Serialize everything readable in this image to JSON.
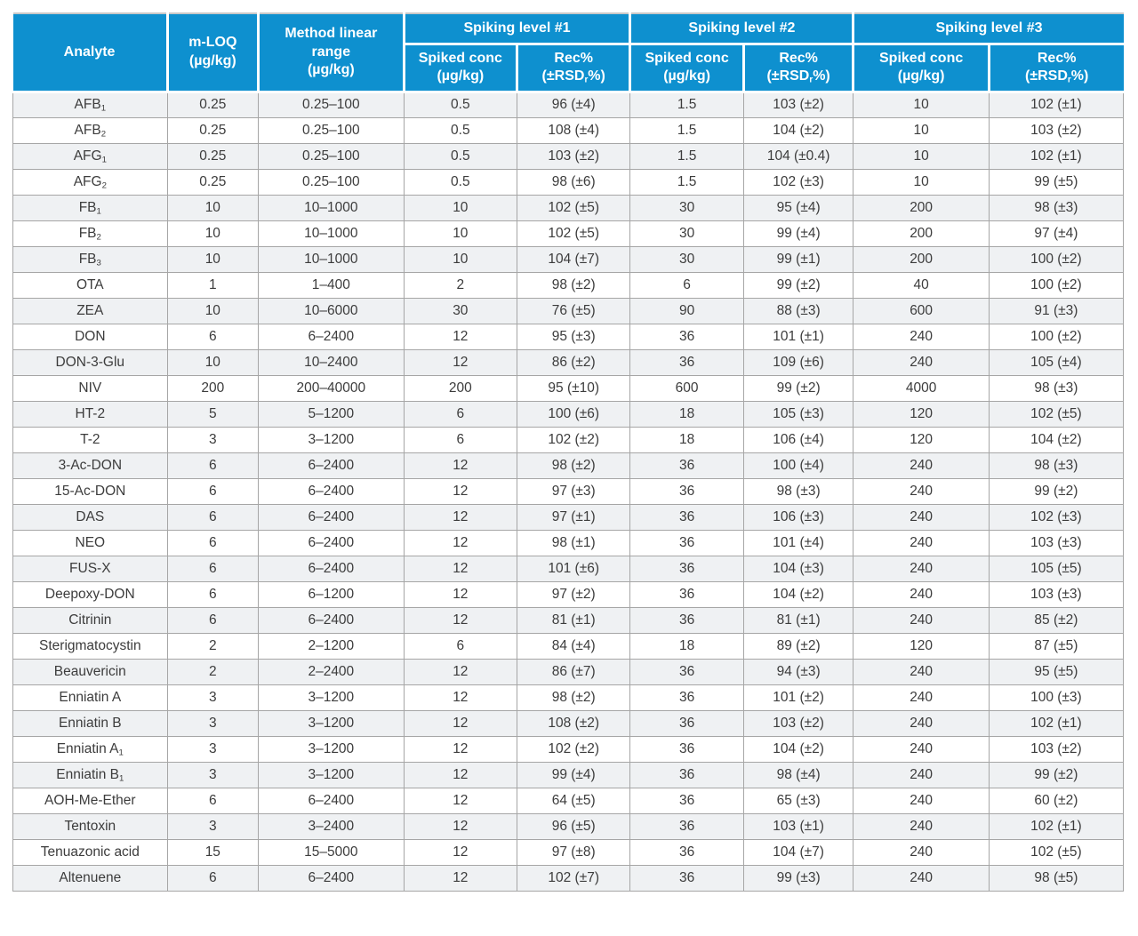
{
  "colors": {
    "header_bg": "#0e90cf",
    "header_text": "#ffffff",
    "body_text": "#3c3c3c",
    "row_stripe": "#eff1f3",
    "grid_border": "#a6a6a6"
  },
  "table": {
    "header": {
      "analyte": "Analyte",
      "mloq": "m-LOQ\n(µg/kg)",
      "range": "Method linear\nrange\n(µg/kg)",
      "groups": [
        "Spiking level #1",
        "Spiking level #2",
        "Spiking level #3"
      ],
      "spiked": "Spiked conc\n(µg/kg)",
      "rec": "Rec%\n(±RSD~r~%)"
    },
    "rows": [
      [
        "AFB~1~",
        "0.25",
        "0.25–100",
        "0.5",
        "96 (±4)",
        "1.5",
        "103 (±2)",
        "10",
        "102 (±1)"
      ],
      [
        "AFB~2~",
        "0.25",
        "0.25–100",
        "0.5",
        "108 (±4)",
        "1.5",
        "104 (±2)",
        "10",
        "103 (±2)"
      ],
      [
        "AFG~1~",
        "0.25",
        "0.25–100",
        "0.5",
        "103 (±2)",
        "1.5",
        "104 (±0.4)",
        "10",
        "102 (±1)"
      ],
      [
        "AFG~2~",
        "0.25",
        "0.25–100",
        "0.5",
        "98 (±6)",
        "1.5",
        "102 (±3)",
        "10",
        "99 (±5)"
      ],
      [
        "FB~1~",
        "10",
        "10–1000",
        "10",
        "102 (±5)",
        "30",
        "95 (±4)",
        "200",
        "98 (±3)"
      ],
      [
        "FB~2~",
        "10",
        "10–1000",
        "10",
        "102 (±5)",
        "30",
        "99 (±4)",
        "200",
        "97 (±4)"
      ],
      [
        "FB~3~",
        "10",
        "10–1000",
        "10",
        "104 (±7)",
        "30",
        "99 (±1)",
        "200",
        "100 (±2)"
      ],
      [
        "OTA",
        "1",
        "1–400",
        "2",
        "98 (±2)",
        "6",
        "99 (±2)",
        "40",
        "100 (±2)"
      ],
      [
        "ZEA",
        "10",
        "10–6000",
        "30",
        "76 (±5)",
        "90",
        "88 (±3)",
        "600",
        "91 (±3)"
      ],
      [
        "DON",
        "6",
        "6–2400",
        "12",
        "95 (±3)",
        "36",
        "101 (±1)",
        "240",
        "100 (±2)"
      ],
      [
        "DON-3-Glu",
        "10",
        "10–2400",
        "12",
        "86 (±2)",
        "36",
        "109 (±6)",
        "240",
        "105 (±4)"
      ],
      [
        "NIV",
        "200",
        "200–40000",
        "200",
        "95 (±10)",
        "600",
        "99 (±2)",
        "4000",
        "98 (±3)"
      ],
      [
        "HT-2",
        "5",
        "5–1200",
        "6",
        "100 (±6)",
        "18",
        "105 (±3)",
        "120",
        "102 (±5)"
      ],
      [
        "T-2",
        "3",
        "3–1200",
        "6",
        "102 (±2)",
        "18",
        "106 (±4)",
        "120",
        "104 (±2)"
      ],
      [
        "3-Ac-DON",
        "6",
        "6–2400",
        "12",
        "98 (±2)",
        "36",
        "100 (±4)",
        "240",
        "98 (±3)"
      ],
      [
        "15-Ac-DON",
        "6",
        "6–2400",
        "12",
        "97 (±3)",
        "36",
        "98 (±3)",
        "240",
        "99 (±2)"
      ],
      [
        "DAS",
        "6",
        "6–2400",
        "12",
        "97 (±1)",
        "36",
        "106 (±3)",
        "240",
        "102 (±3)"
      ],
      [
        "NEO",
        "6",
        "6–2400",
        "12",
        "98 (±1)",
        "36",
        "101 (±4)",
        "240",
        "103 (±3)"
      ],
      [
        "FUS-X",
        "6",
        "6–2400",
        "12",
        "101 (±6)",
        "36",
        "104 (±3)",
        "240",
        "105 (±5)"
      ],
      [
        "Deepoxy-DON",
        "6",
        "6–1200",
        "12",
        "97 (±2)",
        "36",
        "104 (±2)",
        "240",
        "103 (±3)"
      ],
      [
        "Citrinin",
        "6",
        "6–2400",
        "12",
        "81 (±1)",
        "36",
        "81 (±1)",
        "240",
        "85 (±2)"
      ],
      [
        "Sterigmatocystin",
        "2",
        "2–1200",
        "6",
        "84 (±4)",
        "18",
        "89 (±2)",
        "120",
        "87 (±5)"
      ],
      [
        "Beauvericin",
        "2",
        "2–2400",
        "12",
        "86 (±7)",
        "36",
        "94 (±3)",
        "240",
        "95 (±5)"
      ],
      [
        "Enniatin A",
        "3",
        "3–1200",
        "12",
        "98 (±2)",
        "36",
        "101 (±2)",
        "240",
        "100 (±3)"
      ],
      [
        "Enniatin B",
        "3",
        "3–1200",
        "12",
        "108 (±2)",
        "36",
        "103 (±2)",
        "240",
        "102 (±1)"
      ],
      [
        "Enniatin A~1~",
        "3",
        "3–1200",
        "12",
        "102 (±2)",
        "36",
        "104 (±2)",
        "240",
        "103 (±2)"
      ],
      [
        "Enniatin B~1~",
        "3",
        "3–1200",
        "12",
        "99 (±4)",
        "36",
        "98 (±4)",
        "240",
        "99 (±2)"
      ],
      [
        "AOH-Me-Ether",
        "6",
        "6–2400",
        "12",
        "64 (±5)",
        "36",
        "65 (±3)",
        "240",
        "60 (±2)"
      ],
      [
        "Tentoxin",
        "3",
        "3–2400",
        "12",
        "96 (±5)",
        "36",
        "103 (±1)",
        "240",
        "102 (±1)"
      ],
      [
        "Tenuazonic acid",
        "15",
        "15–5000",
        "12",
        "97 (±8)",
        "36",
        "104 (±7)",
        "240",
        "102 (±5)"
      ],
      [
        "Altenuene",
        "6",
        "6–2400",
        "12",
        "102 (±7)",
        "36",
        "99 (±3)",
        "240",
        "98 (±5)"
      ]
    ]
  }
}
